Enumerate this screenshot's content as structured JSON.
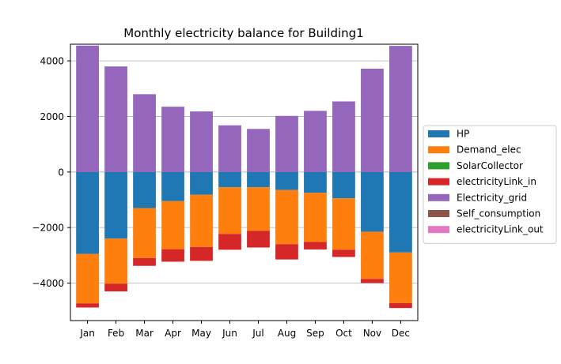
{
  "chart_data": {
    "type": "bar",
    "stacked": true,
    "title": "Monthly electricity balance for Building1",
    "xlabel": "",
    "ylabel": "",
    "ylim": [
      -5350,
      4600
    ],
    "yticks": [
      -4000,
      -2000,
      0,
      2000,
      4000
    ],
    "ytick_labels": [
      "−4000",
      "−2000",
      "0",
      "2000",
      "4000"
    ],
    "grid": "horizontal",
    "legend_position": "right",
    "categories": [
      "Jan",
      "Feb",
      "Mar",
      "Apr",
      "May",
      "Jun",
      "Jul",
      "Aug",
      "Sep",
      "Oct",
      "Nov",
      "Dec"
    ],
    "series": [
      {
        "name": "HP",
        "color": "#1f77b4",
        "values": [
          -2950,
          -2400,
          -1300,
          -1050,
          -820,
          -550,
          -550,
          -650,
          -750,
          -950,
          -2150,
          -2900
        ]
      },
      {
        "name": "Demand_elec",
        "color": "#ff7f0e",
        "values": [
          -1780,
          -1620,
          -1800,
          -1730,
          -1880,
          -1680,
          -1570,
          -1950,
          -1770,
          -1850,
          -1700,
          -1820
        ]
      },
      {
        "name": "SolarCollector",
        "color": "#2ca02c",
        "values": [
          0,
          0,
          0,
          0,
          0,
          0,
          0,
          0,
          0,
          0,
          0,
          0
        ]
      },
      {
        "name": "electricityLink_in",
        "color": "#d62728",
        "values": [
          -150,
          -280,
          -280,
          -450,
          -500,
          -570,
          -600,
          -550,
          -270,
          -260,
          -150,
          -180
        ]
      },
      {
        "name": "Electricity_grid",
        "color": "#9467bd",
        "values": [
          4550,
          3800,
          2800,
          2350,
          2180,
          1680,
          1550,
          2020,
          2200,
          2540,
          3720,
          4540
        ]
      },
      {
        "name": "Self_consumption",
        "color": "#8c564b",
        "values": [
          0,
          0,
          0,
          0,
          0,
          0,
          0,
          0,
          0,
          0,
          0,
          0
        ]
      },
      {
        "name": "electricityLink_out",
        "color": "#e377c2",
        "values": [
          0,
          0,
          0,
          0,
          0,
          0,
          0,
          0,
          0,
          0,
          0,
          0
        ]
      }
    ]
  }
}
